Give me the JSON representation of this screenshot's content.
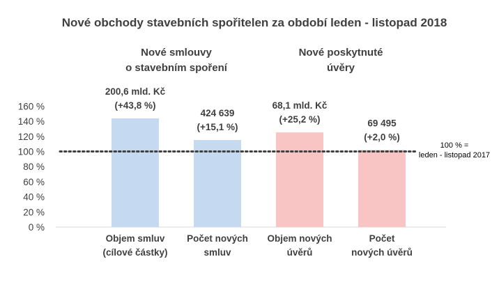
{
  "chart_data": {
    "type": "bar",
    "title": "Nové obchody stavebních spořitelen za období leden - listopad 2018",
    "group_labels": [
      [
        "Nové smlouvy",
        "o stavebním spoření"
      ],
      [
        "Nové poskytnuté",
        "úvěry"
      ]
    ],
    "categories": [
      [
        "Objem smluv",
        "(cílové částky)"
      ],
      [
        "Počet  nových",
        "smluv"
      ],
      [
        "Objem nových",
        "úvěrů"
      ],
      [
        "Počet",
        "nových úvěrů"
      ]
    ],
    "values": [
      143.8,
      115.1,
      125.2,
      102.0
    ],
    "data_labels": [
      [
        "200,6 mld. Kč",
        "(+43,8 %)"
      ],
      [
        "424 639",
        "(+15,1 %)"
      ],
      [
        "68,1 mld. Kč",
        "(+25,2 %)"
      ],
      [
        "69 495",
        "(+2,0 %)"
      ]
    ],
    "bar_colors": [
      "#c5d9f1",
      "#c5d9f1",
      "#f8c4c4",
      "#f8c4c4"
    ],
    "y_ticks": [
      "0 %",
      "20 %",
      "40 %",
      "60 %",
      "80 %",
      "100 %",
      "120 %",
      "140 %",
      "160 %"
    ],
    "ylim": [
      0,
      160
    ],
    "reference_line": {
      "value": 100,
      "label": [
        "100 % =",
        "leden - listopad  2017"
      ],
      "style": "dotted",
      "color": "#404040"
    },
    "xlabel": "",
    "ylabel": "",
    "grid": false
  }
}
